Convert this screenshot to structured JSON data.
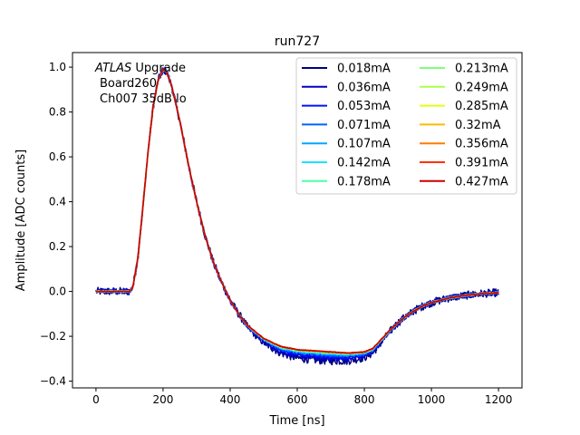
{
  "chart_data": {
    "type": "line",
    "title": "run727",
    "xlabel": "Time [ns]",
    "ylabel": "Amplitude [ADC counts]",
    "xlim": [
      -70,
      1270
    ],
    "ylim": [
      -0.43,
      1.065
    ],
    "xticks": [
      0,
      200,
      400,
      600,
      800,
      1000,
      1200
    ],
    "xtick_labels": [
      "0",
      "200",
      "400",
      "600",
      "800",
      "1000",
      "1200"
    ],
    "yticks": [
      -0.4,
      -0.2,
      0.0,
      0.2,
      0.4,
      0.6,
      0.8,
      1.0
    ],
    "ytick_labels": [
      "−0.4",
      "−0.2",
      "0.0",
      "0.2",
      "0.4",
      "0.6",
      "0.8",
      "1.0"
    ],
    "grid": false,
    "legend_position": "top-right",
    "legend_columns": 2,
    "annotation": {
      "line1_italic": "ATLAS",
      "line1_rest": " Upgrade",
      "line2": "Board260",
      "line3": "Ch007 35dB lo"
    },
    "pulse_shape": {
      "x": [
        0,
        100,
        110,
        125,
        140,
        155,
        170,
        185,
        200,
        210,
        225,
        250,
        275,
        300,
        325,
        350,
        375,
        400,
        425,
        450,
        500,
        550,
        600,
        650,
        700,
        750,
        800,
        825,
        850,
        875,
        900,
        925,
        950,
        975,
        1000,
        1050,
        1100,
        1150,
        1200
      ],
      "y": [
        0.0,
        0.0,
        0.02,
        0.15,
        0.38,
        0.62,
        0.82,
        0.94,
        0.99,
        0.98,
        0.92,
        0.76,
        0.57,
        0.4,
        0.25,
        0.13,
        0.04,
        -0.04,
        -0.1,
        -0.15,
        -0.21,
        -0.245,
        -0.26,
        -0.265,
        -0.27,
        -0.275,
        -0.27,
        -0.255,
        -0.215,
        -0.175,
        -0.14,
        -0.11,
        -0.085,
        -0.065,
        -0.05,
        -0.03,
        -0.018,
        -0.01,
        -0.005
      ]
    },
    "series": [
      {
        "name": "0.018mA",
        "color": "#00007f",
        "noise": 0.018,
        "valley_offset": -0.04
      },
      {
        "name": "0.036mA",
        "color": "#0000c8",
        "noise": 0.012,
        "valley_offset": -0.03
      },
      {
        "name": "0.053mA",
        "color": "#0011ff",
        "noise": 0.008,
        "valley_offset": -0.022
      },
      {
        "name": "0.071mA",
        "color": "#0062ff",
        "noise": 0.006,
        "valley_offset": -0.015
      },
      {
        "name": "0.107mA",
        "color": "#00a9ff",
        "noise": 0.005,
        "valley_offset": -0.01
      },
      {
        "name": "0.142mA",
        "color": "#1be4ff",
        "noise": 0.004,
        "valley_offset": -0.007
      },
      {
        "name": "0.178mA",
        "color": "#4dffaa",
        "noise": 0.003,
        "valley_offset": -0.005
      },
      {
        "name": "0.213mA",
        "color": "#7dff7a",
        "noise": 0.003,
        "valley_offset": -0.003
      },
      {
        "name": "0.249mA",
        "color": "#aaff4d",
        "noise": 0.002,
        "valley_offset": -0.002
      },
      {
        "name": "0.285mA",
        "color": "#e4ff13",
        "noise": 0.002,
        "valley_offset": -0.001
      },
      {
        "name": "0.32mA",
        "color": "#ffb900",
        "noise": 0.002,
        "valley_offset": 0.0
      },
      {
        "name": "0.356mA",
        "color": "#ff7a00",
        "noise": 0.002,
        "valley_offset": 0.0
      },
      {
        "name": "0.391mA",
        "color": "#ff3000",
        "noise": 0.002,
        "valley_offset": 0.0
      },
      {
        "name": "0.427mA",
        "color": "#c80000",
        "noise": 0.002,
        "valley_offset": 0.0
      }
    ]
  }
}
